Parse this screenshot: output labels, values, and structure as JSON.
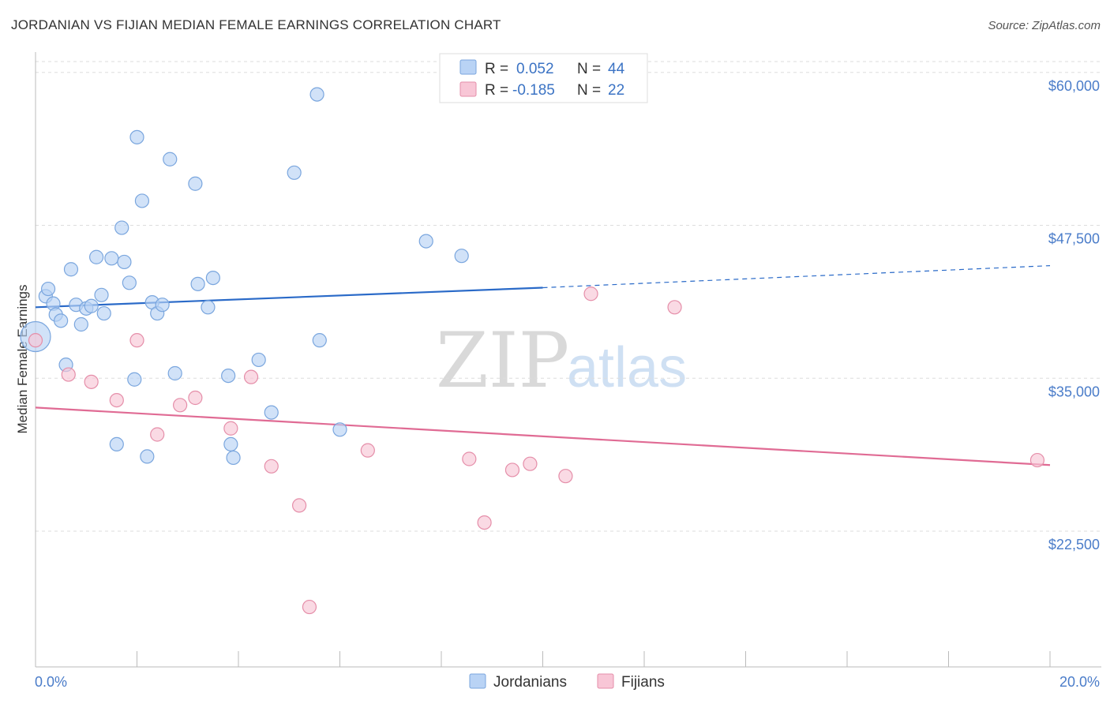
{
  "title": "JORDANIAN VS FIJIAN MEDIAN FEMALE EARNINGS CORRELATION CHART",
  "source": "Source: ZipAtlas.com",
  "watermark": {
    "part1": "ZIP",
    "part2": "atlas"
  },
  "colors": {
    "blue_fill": "#b9d3f5",
    "blue_stroke": "#7aa6de",
    "blue_line": "#2a6ac8",
    "pink_fill": "#f8c6d6",
    "pink_stroke": "#e58ea9",
    "pink_line": "#e06b94",
    "grid": "#dddddd",
    "axis_text": "#4a7cc9"
  },
  "chart_data": {
    "type": "scatter",
    "title": "JORDANIAN VS FIJIAN MEDIAN FEMALE EARNINGS CORRELATION CHART",
    "xlabel": "",
    "ylabel": "Median Female Earnings",
    "xlim": [
      0,
      20
    ],
    "ylim": [
      12500,
      62500
    ],
    "x_tick_labels": [
      "0.0%",
      "20.0%"
    ],
    "y_ticks": [
      22500,
      35000,
      47500,
      60000
    ],
    "y_tick_labels": [
      "$22,500",
      "$35,000",
      "$47,500",
      "$60,000"
    ],
    "legend": {
      "rows": [
        {
          "r_label": "R =",
          "r_value": "0.052",
          "n_label": "N =",
          "n_value": "44"
        },
        {
          "r_label": "R =",
          "r_value": "-0.185",
          "n_label": "N =",
          "n_value": "22"
        }
      ]
    },
    "series": [
      {
        "name": "Jordanians",
        "trend": {
          "x0": 0,
          "y0": 41900,
          "x1": 10,
          "y1": 43500,
          "dashed_to_x": 20,
          "dashed_to_y": 45300
        },
        "points": [
          [
            0.0,
            39500,
            "big"
          ],
          [
            0.2,
            42800
          ],
          [
            0.25,
            43400
          ],
          [
            0.35,
            42200
          ],
          [
            0.4,
            41300
          ],
          [
            0.5,
            40800
          ],
          [
            0.6,
            37200
          ],
          [
            0.7,
            45000
          ],
          [
            0.8,
            42100
          ],
          [
            1.0,
            41800
          ],
          [
            0.9,
            40500
          ],
          [
            1.1,
            42000
          ],
          [
            1.2,
            46000
          ],
          [
            1.3,
            42900
          ],
          [
            1.35,
            41400
          ],
          [
            1.5,
            45900
          ],
          [
            1.6,
            30700
          ],
          [
            1.7,
            48400
          ],
          [
            1.75,
            45600
          ],
          [
            1.85,
            43900
          ],
          [
            1.95,
            36000
          ],
          [
            2.0,
            55800
          ],
          [
            2.1,
            50600
          ],
          [
            2.2,
            29700
          ],
          [
            2.3,
            42300
          ],
          [
            2.4,
            41400
          ],
          [
            2.5,
            42100
          ],
          [
            2.65,
            54000
          ],
          [
            2.75,
            36500
          ],
          [
            3.15,
            52000
          ],
          [
            3.2,
            43800
          ],
          [
            3.4,
            41900
          ],
          [
            3.5,
            44300
          ],
          [
            3.8,
            36300
          ],
          [
            3.85,
            30700
          ],
          [
            3.9,
            29600
          ],
          [
            4.4,
            37600
          ],
          [
            4.65,
            33300
          ],
          [
            5.1,
            52900
          ],
          [
            5.55,
            59300
          ],
          [
            5.6,
            39200
          ],
          [
            6.0,
            31900
          ],
          [
            7.7,
            47300
          ],
          [
            8.4,
            46100
          ]
        ]
      },
      {
        "name": "Fijians",
        "trend": {
          "x0": 0,
          "y0": 33700,
          "x1": 20,
          "y1": 29000
        },
        "points": [
          [
            0.0,
            39200
          ],
          [
            0.65,
            36400
          ],
          [
            1.1,
            35800
          ],
          [
            1.6,
            34300
          ],
          [
            2.0,
            39200
          ],
          [
            2.4,
            31500
          ],
          [
            2.85,
            33900
          ],
          [
            3.15,
            34500
          ],
          [
            3.85,
            32000
          ],
          [
            4.25,
            36200
          ],
          [
            4.65,
            28900
          ],
          [
            5.2,
            25700
          ],
          [
            5.4,
            17400
          ],
          [
            6.55,
            30200
          ],
          [
            8.55,
            29500
          ],
          [
            8.85,
            24300
          ],
          [
            9.4,
            28600
          ],
          [
            9.75,
            29100
          ],
          [
            10.45,
            28100
          ],
          [
            10.95,
            43000
          ],
          [
            12.6,
            41900
          ],
          [
            19.75,
            29400
          ]
        ]
      }
    ]
  }
}
